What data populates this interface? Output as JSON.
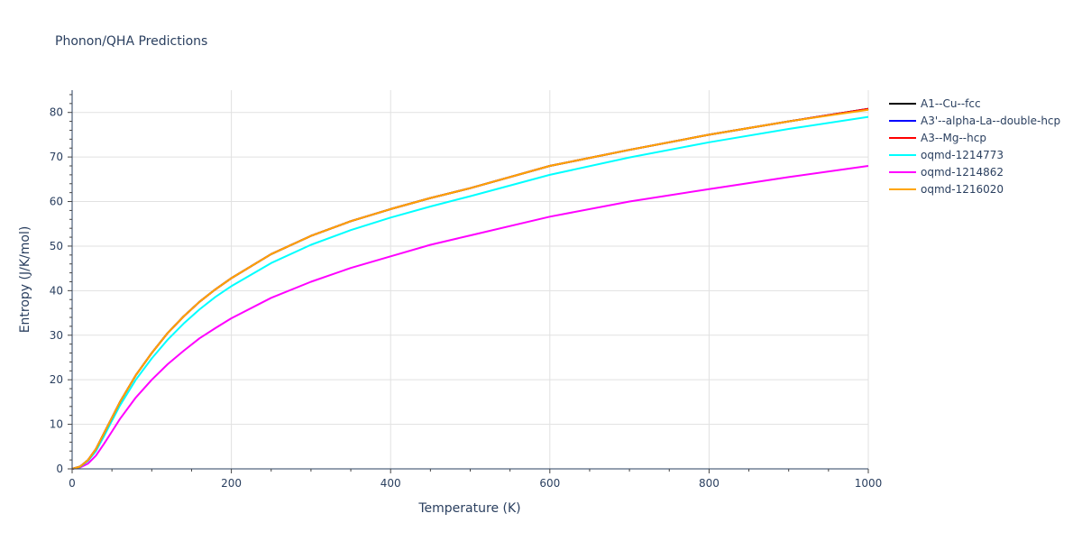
{
  "chart_data": {
    "type": "line",
    "title": "Phonon/QHA Predictions",
    "xlabel": "Temperature (K)",
    "ylabel": "Entropy (J/K/mol)",
    "xlim": [
      0,
      1000
    ],
    "ylim": [
      0,
      85
    ],
    "x_ticks": [
      0,
      200,
      400,
      600,
      800,
      1000
    ],
    "y_ticks": [
      0,
      10,
      20,
      30,
      40,
      50,
      60,
      70,
      80
    ],
    "grid": true,
    "legend_position": "right",
    "x": [
      0,
      10,
      20,
      30,
      40,
      50,
      60,
      80,
      100,
      120,
      140,
      160,
      180,
      200,
      250,
      300,
      350,
      400,
      450,
      500,
      600,
      700,
      800,
      900,
      1000
    ],
    "series": [
      {
        "name": "A1--Cu--fcc",
        "color": "#000000",
        "values": [
          0,
          0.5,
          2.0,
          4.5,
          8.0,
          11.5,
          15.0,
          21.0,
          26.0,
          30.5,
          34.2,
          37.5,
          40.3,
          42.8,
          48.2,
          52.3,
          55.6,
          58.3,
          60.8,
          63.0,
          68.0,
          71.6,
          75.0,
          78.0,
          80.8
        ]
      },
      {
        "name": "A3'--alpha-La--double-hcp",
        "color": "#0000ff",
        "values": [
          0,
          0.5,
          2.0,
          4.5,
          8.0,
          11.5,
          15.0,
          21.0,
          26.0,
          30.5,
          34.2,
          37.5,
          40.3,
          42.8,
          48.2,
          52.3,
          55.6,
          58.3,
          60.8,
          63.0,
          68.0,
          71.6,
          75.0,
          78.0,
          80.8
        ]
      },
      {
        "name": "A3--Mg--hcp",
        "color": "#ff0000",
        "values": [
          0,
          0.5,
          2.0,
          4.5,
          8.0,
          11.5,
          15.0,
          21.0,
          26.0,
          30.5,
          34.2,
          37.5,
          40.3,
          42.8,
          48.2,
          52.3,
          55.6,
          58.3,
          60.8,
          63.0,
          68.0,
          71.6,
          75.0,
          78.0,
          80.8
        ]
      },
      {
        "name": "oqmd-1214773",
        "color": "#00ffff",
        "values": [
          0,
          0.4,
          1.8,
          4.0,
          7.3,
          10.8,
          14.2,
          20.0,
          24.8,
          29.0,
          32.6,
          35.8,
          38.6,
          41.0,
          46.2,
          50.3,
          53.6,
          56.4,
          58.9,
          61.2,
          66.0,
          69.9,
          73.3,
          76.3,
          79.0
        ]
      },
      {
        "name": "oqmd-1214862",
        "color": "#ff00ff",
        "values": [
          0,
          0.3,
          1.2,
          3.0,
          5.6,
          8.4,
          11.2,
          16.0,
          20.0,
          23.5,
          26.5,
          29.3,
          31.6,
          33.8,
          38.4,
          42.0,
          45.1,
          47.7,
          50.3,
          52.4,
          56.6,
          60.0,
          62.8,
          65.5,
          68.0
        ]
      },
      {
        "name": "oqmd-1216020",
        "color": "#ffa500",
        "values": [
          0,
          0.5,
          2.0,
          4.5,
          8.0,
          11.5,
          15.0,
          21.0,
          26.0,
          30.5,
          34.2,
          37.5,
          40.3,
          42.8,
          48.2,
          52.3,
          55.6,
          58.3,
          60.8,
          63.0,
          68.0,
          71.6,
          75.0,
          78.0,
          80.6
        ]
      }
    ]
  }
}
